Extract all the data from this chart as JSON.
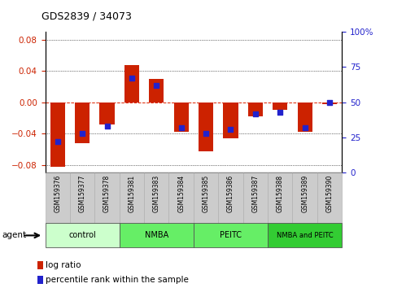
{
  "title": "GDS2839 / 34073",
  "samples": [
    "GSM159376",
    "GSM159377",
    "GSM159378",
    "GSM159381",
    "GSM159383",
    "GSM159384",
    "GSM159385",
    "GSM159386",
    "GSM159387",
    "GSM159388",
    "GSM159389",
    "GSM159390"
  ],
  "log_ratios": [
    -0.082,
    -0.052,
    -0.028,
    0.047,
    0.03,
    -0.038,
    -0.063,
    -0.046,
    -0.018,
    -0.01,
    -0.038,
    -0.002
  ],
  "percentile_ranks": [
    22,
    28,
    33,
    67,
    62,
    32,
    28,
    31,
    42,
    43,
    32,
    50
  ],
  "groups": [
    {
      "label": "control",
      "start": 0,
      "end": 3,
      "color": "#ccffcc"
    },
    {
      "label": "NMBA",
      "start": 3,
      "end": 6,
      "color": "#66ee66"
    },
    {
      "label": "PEITC",
      "start": 6,
      "end": 9,
      "color": "#66ee66"
    },
    {
      "label": "NMBA and PEITC",
      "start": 9,
      "end": 12,
      "color": "#33cc33"
    }
  ],
  "bar_color": "#cc2200",
  "dot_color": "#2222cc",
  "ylim_left": [
    -0.09,
    0.09
  ],
  "ylim_right": [
    0,
    112.5
  ],
  "yticks_left": [
    -0.08,
    -0.04,
    0.0,
    0.04,
    0.08
  ],
  "yticks_right": [
    0,
    25,
    50,
    75,
    100
  ],
  "bar_width": 0.6,
  "legend_items": [
    {
      "label": "log ratio",
      "color": "#cc2200"
    },
    {
      "label": "percentile rank within the sample",
      "color": "#2222cc"
    }
  ],
  "agent_label": "agent",
  "zero_line_color": "#dd2200",
  "background_color": "#ffffff",
  "xtick_bg_color": "#cccccc"
}
